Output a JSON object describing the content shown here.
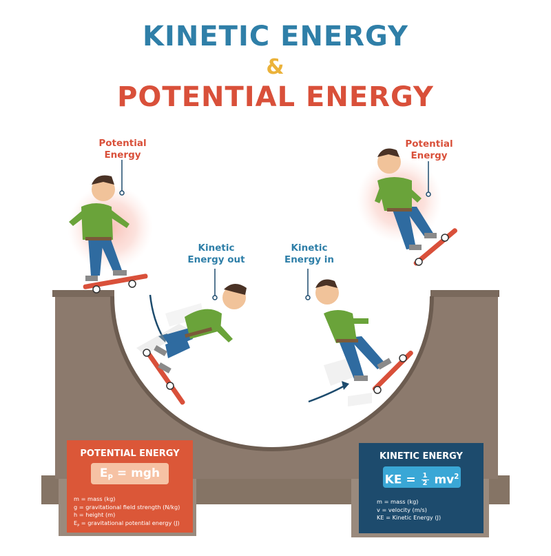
{
  "title": {
    "line1": "KINETIC ENERGY",
    "line2": "&",
    "line3": "POTENTIAL ENERGY"
  },
  "labels": {
    "pe_left": "Potential\nEnergy",
    "ke_out": "Kinetic\nEnergy out",
    "ke_in": "Kinetic\nEnergy in",
    "pe_right": "Potential\nEnergy"
  },
  "pe_card": {
    "title": "POTENTIAL ENERGY",
    "formula_lhs": "E",
    "formula_sub": "P",
    "formula_rhs": "= mgh",
    "defs": [
      "m = mass (kg)",
      "g = gravitational field strength (N/kg)",
      "h = height (m)",
      "= gravitational potential energy (J)"
    ],
    "def4_lhs": "E",
    "def4_sub": "P"
  },
  "ke_card": {
    "title": "KINETIC ENERGY",
    "formula_lhs": "KE =",
    "frac_num": "1",
    "frac_den": "2",
    "formula_rhs": "mv",
    "formula_sup": "2",
    "defs": [
      "m = mass (kg)",
      "v = velocity (m/s)",
      "KE = Kinetic Energy (J)"
    ]
  },
  "colors": {
    "kinetic_blue": "#2f7fa8",
    "potential_red": "#d9503a",
    "ampersand_yellow": "#ebb23a",
    "ramp_brown": "#8c7a6d",
    "ke_card": "#1d4b6d",
    "pe_card": "#db5738"
  },
  "icons": [
    "skater-figure",
    "motion-arrow",
    "energy-glow"
  ]
}
